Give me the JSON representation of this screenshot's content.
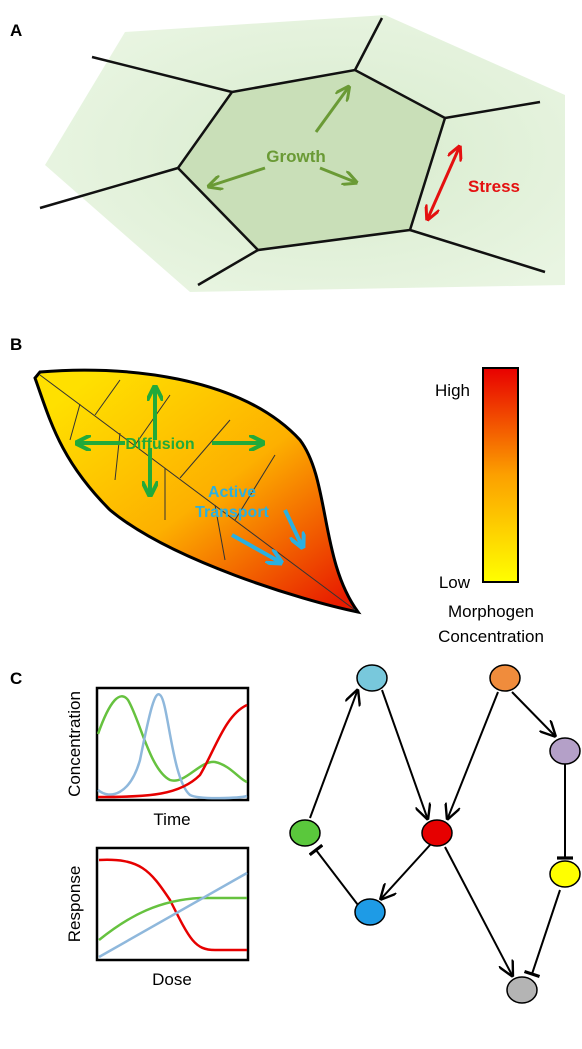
{
  "panel_a": {
    "label": "A",
    "growth": "Growth",
    "stress": "Stress"
  },
  "panel_b": {
    "label": "B",
    "diffusion": "Diffusion",
    "active_transport": [
      "Active",
      "Transport"
    ],
    "colorbar": {
      "high": "High",
      "low": "Low",
      "title": [
        "Morphogen",
        "Concentration"
      ]
    }
  },
  "panel_c": {
    "label": "C",
    "plot_top": {
      "y_label": "Concentration",
      "x_label": "Time"
    },
    "plot_bottom": {
      "y_label": "Response",
      "x_label": "Dose"
    }
  }
}
